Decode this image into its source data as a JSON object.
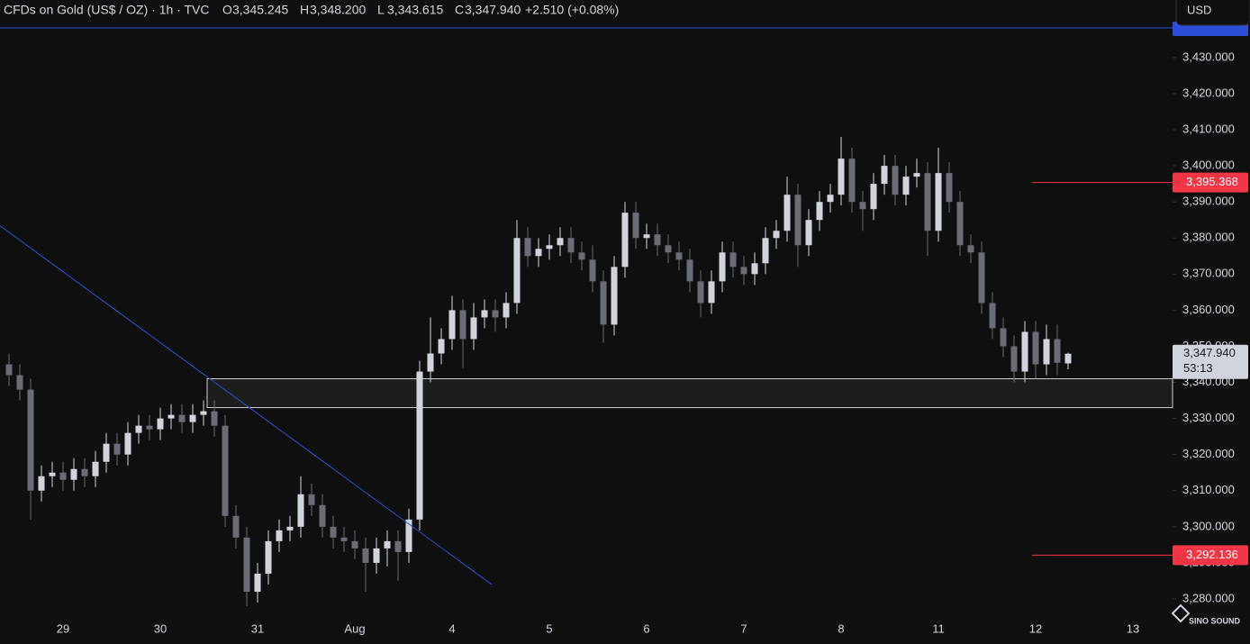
{
  "chart_data": {
    "type": "candlestick",
    "title": "CFDs on Gold (US$ / OZ) · 1h · TVC",
    "ohlc_header": [
      {
        "key": "O",
        "text": "3,345.245"
      },
      {
        "key": "H",
        "text": "3,348.200"
      },
      {
        "key": "L",
        "text": "3,343.615"
      },
      {
        "key": "C",
        "text": "3,347.940"
      }
    ],
    "change": "+2.510 (+0.08%)",
    "currency": "USD",
    "watermark": "SINO SOUND",
    "up_color": "#d1d4dc",
    "down_color": "#6a6d78",
    "categories": [
      null,
      null,
      null,
      null,
      null,
      "29",
      null,
      null,
      null,
      null,
      null,
      null,
      null,
      null,
      "30",
      null,
      null,
      null,
      null,
      null,
      null,
      null,
      null,
      "31",
      null,
      null,
      null,
      null,
      null,
      null,
      null,
      null,
      "Aug",
      null,
      null,
      null,
      null,
      null,
      null,
      null,
      null,
      "4",
      null,
      null,
      null,
      null,
      null,
      null,
      null,
      null,
      "5",
      null,
      null,
      null,
      null,
      null,
      null,
      null,
      null,
      "6",
      null,
      null,
      null,
      null,
      null,
      null,
      null,
      null,
      "7",
      null,
      null,
      null,
      null,
      null,
      null,
      null,
      null,
      "8",
      null,
      null,
      null,
      null,
      null,
      null,
      null,
      null,
      "11",
      null,
      null,
      null,
      null,
      null,
      null,
      null,
      null,
      "12",
      null,
      null,
      null,
      null,
      null,
      null,
      null,
      null,
      "13",
      null
    ],
    "open": [
      3345,
      3342,
      3338,
      3310,
      3314,
      3315,
      3313,
      3316,
      3314,
      3318,
      3323,
      3320,
      3326,
      3328,
      3327,
      3330,
      3331,
      3329,
      3331,
      3332,
      3328,
      3303,
      3297,
      3282,
      3287,
      3296,
      3299,
      3300,
      3309,
      3306,
      3300,
      3297,
      3296,
      3294,
      3290,
      3294,
      3296,
      3293,
      3302,
      3343,
      3348,
      3352,
      3360,
      3352,
      3358,
      3360,
      3358,
      3362,
      3380,
      3375,
      3377,
      3378,
      3380,
      3376,
      3374,
      3368,
      3356,
      3372,
      3387,
      3380,
      3381,
      3378,
      3376,
      3374,
      3368,
      3362,
      3368,
      3376,
      3372,
      3370,
      3373,
      3380,
      3382,
      3392,
      3378,
      3385,
      3390,
      3392,
      3402,
      3390,
      3388,
      3395,
      3400,
      3392,
      3397,
      3398,
      3382,
      3398,
      3390,
      3378,
      3376,
      3362,
      3355,
      3350,
      3343,
      3354,
      3345,
      3352,
      3345.245,
      null,
      null,
      null,
      null,
      null,
      null,
      null
    ],
    "high": [
      3348,
      3345,
      3341,
      3317,
      3318,
      3318,
      3319,
      3319,
      3321,
      3326,
      3326,
      3329,
      3331,
      3331,
      3333,
      3334,
      3334,
      3334,
      3335,
      3335,
      3331,
      3306,
      3300,
      3290,
      3299,
      3302,
      3303,
      3314,
      3312,
      3309,
      3303,
      3300,
      3299,
      3297,
      3297,
      3299,
      3299,
      3305,
      3346,
      3358,
      3355,
      3364,
      3363,
      3362,
      3363,
      3363,
      3365,
      3385,
      3383,
      3380,
      3381,
      3383,
      3383,
      3379,
      3378,
      3371,
      3375,
      3390,
      3390,
      3384,
      3384,
      3381,
      3379,
      3377,
      3371,
      3371,
      3379,
      3379,
      3375,
      3376,
      3383,
      3385,
      3397,
      3395,
      3388,
      3393,
      3395,
      3408,
      3405,
      3393,
      3398,
      3403,
      3403,
      3400,
      3402,
      3401,
      3405,
      3401,
      3393,
      3381,
      3379,
      3365,
      3358,
      3353,
      3357,
      3357,
      3356,
      3356,
      3348.2,
      null,
      null,
      null,
      null,
      null,
      null,
      null
    ],
    "low": [
      3339,
      3335,
      3302,
      3307,
      3311,
      3310,
      3310,
      3311,
      3311,
      3315,
      3317,
      3317,
      3323,
      3324,
      3324,
      3327,
      3326,
      3326,
      3328,
      3325,
      3300,
      3294,
      3278,
      3279,
      3284,
      3293,
      3296,
      3297,
      3303,
      3297,
      3294,
      3293,
      3291,
      3282,
      3287,
      3289,
      3285,
      3290,
      3299,
      3340,
      3345,
      3349,
      3344,
      3349,
      3355,
      3354,
      3355,
      3359,
      3372,
      3372,
      3374,
      3375,
      3373,
      3371,
      3365,
      3351,
      3353,
      3369,
      3377,
      3377,
      3375,
      3373,
      3371,
      3365,
      3358,
      3359,
      3365,
      3369,
      3367,
      3367,
      3370,
      3377,
      3379,
      3372,
      3375,
      3382,
      3387,
      3389,
      3387,
      3382,
      3385,
      3392,
      3389,
      3389,
      3394,
      3375,
      3379,
      3387,
      3375,
      3373,
      3359,
      3352,
      3347,
      3340,
      3340,
      3341,
      3342,
      3342,
      3343.615,
      null,
      null,
      null,
      null,
      null,
      null,
      null
    ],
    "close": [
      3342,
      3338,
      3310,
      3314,
      3315,
      3313,
      3316,
      3314,
      3318,
      3323,
      3320,
      3326,
      3328,
      3327,
      3330,
      3331,
      3329,
      3331,
      3332,
      3328,
      3303,
      3297,
      3282,
      3287,
      3296,
      3299,
      3300,
      3309,
      3306,
      3300,
      3297,
      3296,
      3294,
      3290,
      3294,
      3296,
      3293,
      3302,
      3343,
      3348,
      3352,
      3360,
      3352,
      3358,
      3360,
      3358,
      3362,
      3380,
      3375,
      3377,
      3378,
      3380,
      3376,
      3374,
      3368,
      3356,
      3372,
      3387,
      3380,
      3381,
      3378,
      3376,
      3374,
      3368,
      3362,
      3368,
      3376,
      3372,
      3370,
      3373,
      3380,
      3382,
      3392,
      3378,
      3385,
      3390,
      3392,
      3402,
      3390,
      3388,
      3395,
      3400,
      3392,
      3397,
      3398,
      3382,
      3398,
      3390,
      3378,
      3376,
      3362,
      3355,
      3350,
      3343,
      3354,
      3345,
      3352,
      3345.43,
      3347.94,
      null,
      null,
      null,
      null,
      null,
      null,
      null
    ],
    "ylim": [
      3275,
      3438.2
    ],
    "yticks": [
      {
        "value": 3280,
        "label": "3,280.000"
      },
      {
        "value": 3290,
        "label": "3,290.000"
      },
      {
        "value": 3300,
        "label": "3,300.000"
      },
      {
        "value": 3310,
        "label": "3,310.000"
      },
      {
        "value": 3320,
        "label": "3,320.000"
      },
      {
        "value": 3330,
        "label": "3,330.000"
      },
      {
        "value": 3340,
        "label": "3,340.000"
      },
      {
        "value": 3350,
        "label": "3,350.000"
      },
      {
        "value": 3360,
        "label": "3,360.000"
      },
      {
        "value": 3370,
        "label": "3,370.000"
      },
      {
        "value": 3380,
        "label": "3,380.000"
      },
      {
        "value": 3390,
        "label": "3,390.000"
      },
      {
        "value": 3400,
        "label": "3,400.000"
      },
      {
        "value": 3410,
        "label": "3,410.000"
      },
      {
        "value": 3420,
        "label": "3,420.000"
      },
      {
        "value": 3430,
        "label": "3,430.000"
      }
    ],
    "level_labels": [
      {
        "value": 3395.368,
        "label": "3,395.368",
        "color": "#f23645"
      },
      {
        "value": 3292.136,
        "label": "3,292.136",
        "color": "#f23645"
      }
    ],
    "current_price": {
      "value": 3347.94,
      "label": "3,347.940",
      "countdown": "53:13"
    },
    "zone": {
      "top": 3341,
      "bottom": 3333
    },
    "trendline": [
      3383.4,
      3284
    ],
    "trend_color": "#2b4fd8"
  }
}
